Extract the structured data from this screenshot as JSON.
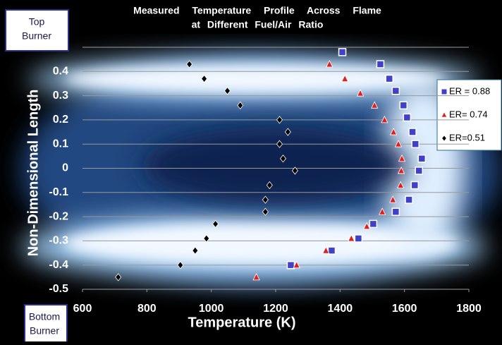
{
  "chart_data": {
    "type": "scatter",
    "title": [
      "Measured Temperature Profile Across Flame",
      "at Different Fuel/Air Ratio"
    ],
    "xlabel": "Temperature (K)",
    "ylabel": "Non-Dimensional Length",
    "annotations": [
      [
        "Top",
        "Burner"
      ],
      [
        "Bottom",
        "Burner"
      ]
    ],
    "xlim": [
      600,
      1800
    ],
    "ylim": [
      -0.5,
      0.5
    ],
    "xticks": [
      600,
      800,
      1000,
      1200,
      1400,
      1600,
      1800
    ],
    "yticks": [
      -0.5,
      -0.4,
      -0.3,
      -0.2,
      -0.1,
      0,
      0.1,
      0.2,
      0.3,
      0.4
    ],
    "grid": true,
    "legend": "right",
    "series": [
      {
        "name": "ER = 0.88",
        "color": "#4040c8",
        "marker": "square",
        "x": [
          1407,
          1525,
          1553,
          1573,
          1597,
          1608,
          1625,
          1634,
          1654,
          1645,
          1632,
          1614,
          1573,
          1503,
          1457,
          1374,
          1247
        ],
        "values": [
          0.48,
          0.43,
          0.37,
          0.32,
          0.26,
          0.21,
          0.15,
          0.1,
          0.04,
          -0.01,
          -0.07,
          -0.13,
          -0.18,
          -0.23,
          -0.29,
          -0.34,
          -0.4
        ]
      },
      {
        "name": "ER= 0.74",
        "color": "#e02020",
        "marker": "triangle",
        "x": [
          1367,
          1415,
          1463,
          1507,
          1538,
          1566,
          1581,
          1592,
          1590,
          1588,
          1564,
          1531,
          1483,
          1435,
          1356,
          1265,
          1140
        ],
        "values": [
          0.43,
          0.37,
          0.31,
          0.26,
          0.2,
          0.15,
          0.1,
          0.04,
          -0.01,
          -0.07,
          -0.13,
          -0.18,
          -0.24,
          -0.29,
          -0.34,
          -0.4,
          -0.45
        ]
      },
      {
        "name": "ER=0.51",
        "color": "#000000",
        "marker": "diamond",
        "x": [
          932,
          978,
          1050,
          1090,
          1212,
          1238,
          1212,
          1223,
          1260,
          1181,
          1168,
          1168,
          1013,
          985,
          950,
          904,
          711
        ],
        "values": [
          0.43,
          0.37,
          0.32,
          0.26,
          0.2,
          0.15,
          0.1,
          0.04,
          -0.01,
          -0.07,
          -0.13,
          -0.18,
          -0.23,
          -0.29,
          -0.34,
          -0.4,
          -0.45
        ]
      }
    ]
  }
}
